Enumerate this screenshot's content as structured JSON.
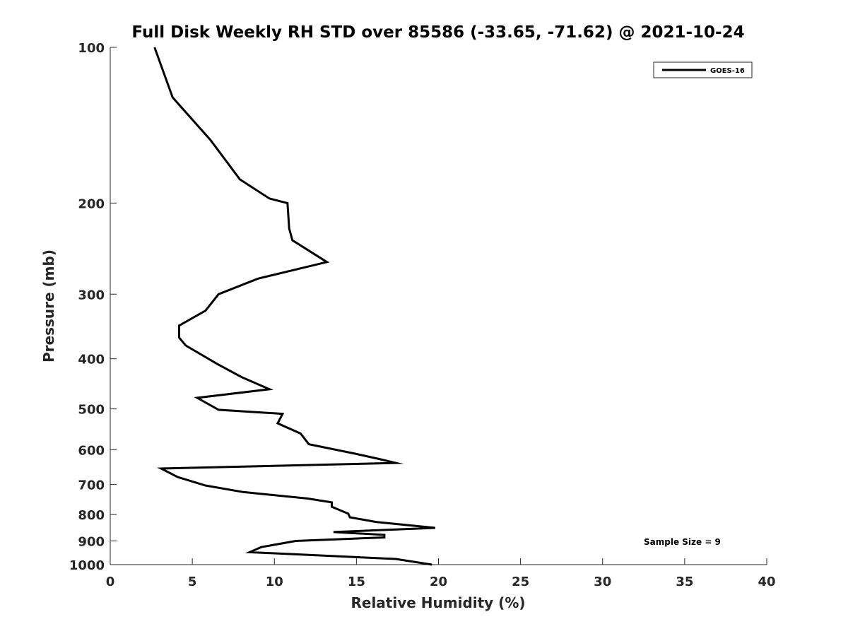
{
  "chart_data": {
    "type": "line",
    "title": "Full Disk Weekly RH STD over 85586 (-33.65, -71.62) @ 2021-10-24",
    "xlabel": "Relative Humidity (%)",
    "ylabel": "Pressure (mb)",
    "xlim": [
      0,
      40
    ],
    "ylim": [
      100,
      1000
    ],
    "y_scale": "log",
    "y_reversed": true,
    "x_ticks": [
      0,
      5,
      10,
      15,
      20,
      25,
      30,
      35,
      40
    ],
    "y_ticks": [
      100,
      200,
      300,
      400,
      500,
      600,
      700,
      800,
      900,
      1000
    ],
    "legend": {
      "entries": [
        "GOES-16"
      ],
      "placement": "top-right"
    },
    "annotation": "Sample Size = 9",
    "grid": false,
    "series": [
      {
        "name": "GOES-16",
        "color": "#000000",
        "points": [
          [
            2.7,
            100
          ],
          [
            3.8,
            125
          ],
          [
            6.1,
            151
          ],
          [
            7.9,
            180
          ],
          [
            9.7,
            196
          ],
          [
            10.8,
            200
          ],
          [
            10.9,
            224
          ],
          [
            11.1,
            236
          ],
          [
            13.2,
            260
          ],
          [
            9.0,
            280
          ],
          [
            6.6,
            300
          ],
          [
            5.8,
            323
          ],
          [
            4.2,
            345
          ],
          [
            4.2,
            364
          ],
          [
            4.6,
            377
          ],
          [
            6.5,
            409
          ],
          [
            8.0,
            434
          ],
          [
            9.7,
            458
          ],
          [
            5.3,
            476
          ],
          [
            6.6,
            502
          ],
          [
            10.5,
            511
          ],
          [
            10.2,
            533
          ],
          [
            11.6,
            558
          ],
          [
            12.1,
            585
          ],
          [
            15.0,
            611
          ],
          [
            16.5,
            626
          ],
          [
            17.4,
            636
          ],
          [
            3.1,
            652
          ],
          [
            4.1,
            677
          ],
          [
            5.8,
            703
          ],
          [
            8.1,
            724
          ],
          [
            12.0,
            745
          ],
          [
            13.5,
            758
          ],
          [
            13.5,
            773
          ],
          [
            14.5,
            797
          ],
          [
            14.6,
            810
          ],
          [
            16.2,
            827
          ],
          [
            19.8,
            849
          ],
          [
            13.6,
            865
          ],
          [
            16.7,
            876
          ],
          [
            16.7,
            886
          ],
          [
            11.3,
            900
          ],
          [
            9.2,
            925
          ],
          [
            8.5,
            946
          ],
          [
            17.4,
            975
          ],
          [
            19.6,
            1000
          ]
        ]
      }
    ]
  }
}
